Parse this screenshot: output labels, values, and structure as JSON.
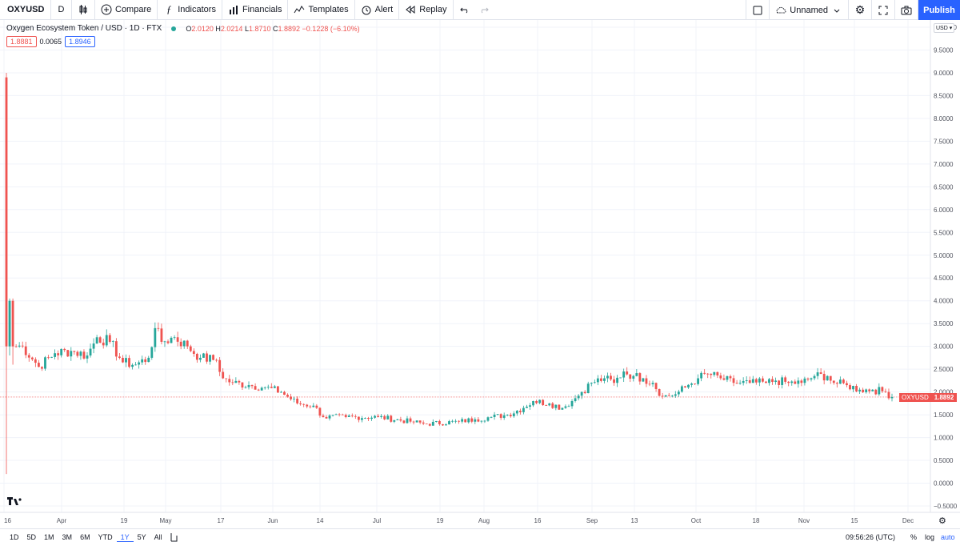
{
  "toolbar": {
    "symbol": "OXYUSD",
    "interval": "D",
    "compare": "Compare",
    "indicators": "Indicators",
    "financials": "Financials",
    "templates": "Templates",
    "alert": "Alert",
    "replay": "Replay",
    "layout_name": "Unnamed",
    "publish": "Publish"
  },
  "legend": {
    "title": "Oxygen Ecosystem Token / USD · 1D · FTX",
    "open_label": "O",
    "open": "2.0120",
    "high_label": "H",
    "high": "2.0214",
    "low_label": "L",
    "low": "1.8710",
    "close_label": "C",
    "close": "1.8892",
    "change": "−0.1228 (−6.10%)",
    "bid": "1.8881",
    "spread": "0.0065",
    "ask": "1.8946"
  },
  "price_axis": {
    "currency": "USD",
    "last_symbol": "OXYUSD",
    "last_price": "1.8892"
  },
  "bottom": {
    "ranges": [
      "1D",
      "5D",
      "1M",
      "3M",
      "6M",
      "YTD",
      "1Y",
      "5Y",
      "All"
    ],
    "active_range": "1Y",
    "time": "09:56:26 (UTC)",
    "percent": "%",
    "log": "log",
    "auto": "auto"
  },
  "colors": {
    "up": "#26a69a",
    "down": "#ef5350",
    "accent": "#2962ff"
  },
  "chart_data": {
    "type": "candlestick",
    "symbol": "OXYUSD",
    "ylim": [
      -0.5,
      10.0
    ],
    "y_ticks": [
      "−0.5000",
      "0.0000",
      "0.5000",
      "1.0000",
      "1.5000",
      "2.0000",
      "2.5000",
      "3.0000",
      "3.5000",
      "4.0000",
      "4.5000",
      "5.0000",
      "5.5000",
      "6.0000",
      "6.5000",
      "7.0000",
      "7.5000",
      "8.0000",
      "8.5000",
      "9.0000",
      "9.5000",
      "10.0000"
    ],
    "x_ticks": [
      "16",
      "Apr",
      "19",
      "May",
      "17",
      "Jun",
      "14",
      "Jul",
      "19",
      "Aug",
      "16",
      "Sep",
      "13",
      "Oct",
      "18",
      "Nov",
      "15",
      "Dec"
    ],
    "anchors": [
      {
        "i": 0,
        "o": 8.9,
        "c": 3.0,
        "h": 9.0,
        "l": 0.2
      },
      {
        "i": 1,
        "o": 3.0,
        "c": 4.0,
        "h": 4.05,
        "l": 2.8
      },
      {
        "i": 2,
        "o": 4.0,
        "c": 3.0,
        "h": 4.05,
        "l": 2.6
      },
      {
        "i": 5,
        "c": 3.0
      },
      {
        "i": 10,
        "c": 2.55
      },
      {
        "i": 15,
        "c": 2.85
      },
      {
        "i": 20,
        "c": 2.9
      },
      {
        "i": 25,
        "c": 2.8
      },
      {
        "i": 28,
        "c": 3.2
      },
      {
        "i": 32,
        "c": 3.1
      },
      {
        "i": 36,
        "c": 2.65
      },
      {
        "i": 40,
        "c": 2.6
      },
      {
        "i": 44,
        "c": 2.75
      },
      {
        "i": 46,
        "c": 3.4
      },
      {
        "i": 48,
        "c": 3.1
      },
      {
        "i": 52,
        "c": 3.2
      },
      {
        "i": 56,
        "c": 3.0
      },
      {
        "i": 60,
        "c": 2.75
      },
      {
        "i": 65,
        "c": 2.7
      },
      {
        "i": 67,
        "c": 2.3
      },
      {
        "i": 70,
        "c": 2.2
      },
      {
        "i": 75,
        "c": 2.15
      },
      {
        "i": 80,
        "c": 2.1
      },
      {
        "i": 85,
        "c": 2.0
      },
      {
        "i": 90,
        "c": 1.75
      },
      {
        "i": 95,
        "c": 1.7
      },
      {
        "i": 98,
        "c": 1.45
      },
      {
        "i": 105,
        "c": 1.45
      },
      {
        "i": 115,
        "c": 1.45
      },
      {
        "i": 125,
        "c": 1.35
      },
      {
        "i": 130,
        "c": 1.3
      },
      {
        "i": 140,
        "c": 1.35
      },
      {
        "i": 145,
        "c": 1.4
      },
      {
        "i": 150,
        "c": 1.45
      },
      {
        "i": 155,
        "c": 1.5
      },
      {
        "i": 160,
        "c": 1.65
      },
      {
        "i": 163,
        "c": 1.8
      },
      {
        "i": 168,
        "c": 1.75
      },
      {
        "i": 172,
        "c": 1.65
      },
      {
        "i": 175,
        "c": 1.8
      },
      {
        "i": 178,
        "c": 2.0
      },
      {
        "i": 181,
        "c": 2.2
      },
      {
        "i": 185,
        "c": 2.3
      },
      {
        "i": 188,
        "c": 2.2
      },
      {
        "i": 191,
        "c": 2.45
      },
      {
        "i": 194,
        "c": 2.35
      },
      {
        "i": 197,
        "c": 2.3
      },
      {
        "i": 200,
        "c": 2.2
      },
      {
        "i": 203,
        "c": 1.9
      },
      {
        "i": 207,
        "c": 1.95
      },
      {
        "i": 210,
        "c": 2.1
      },
      {
        "i": 214,
        "c": 2.3
      },
      {
        "i": 217,
        "c": 2.4
      },
      {
        "i": 221,
        "c": 2.3
      },
      {
        "i": 225,
        "c": 2.2
      },
      {
        "i": 230,
        "c": 2.2
      },
      {
        "i": 235,
        "c": 2.2
      },
      {
        "i": 238,
        "c": 2.25
      },
      {
        "i": 242,
        "c": 2.2
      },
      {
        "i": 246,
        "c": 2.2
      },
      {
        "i": 250,
        "c": 2.35
      },
      {
        "i": 254,
        "c": 2.35
      },
      {
        "i": 256,
        "c": 2.2
      },
      {
        "i": 260,
        "c": 2.15
      },
      {
        "i": 264,
        "c": 2.05
      },
      {
        "i": 268,
        "c": 2.05
      },
      {
        "i": 272,
        "c": 2.0
      },
      {
        "i": 274,
        "c": 1.8892
      }
    ]
  }
}
